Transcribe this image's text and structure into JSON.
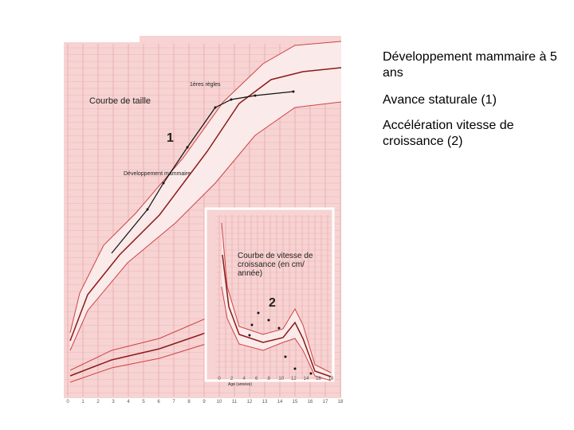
{
  "slide": {
    "bullets": [
      "Développement mammaire à 5 ans",
      "Avance staturale (1)",
      "Accélération vitesse de croissance (2)"
    ]
  },
  "figure": {
    "height_title": "Courbe de taille",
    "menarche_label": "1ères règles",
    "breast_label": "Développement mammaire",
    "marker_1": "1",
    "marker_2": "2",
    "x_ticks": [
      "0",
      "1",
      "2",
      "3",
      "4",
      "5",
      "6",
      "7",
      "8",
      "9",
      "10",
      "11",
      "12",
      "13",
      "14",
      "15",
      "16",
      "17",
      "18"
    ],
    "inset": {
      "title": "Courbe de vitesse de croissance (en cm/ année)",
      "x_label": "Age (années)",
      "x_ticks": [
        "0",
        "2",
        "4",
        "6",
        "8",
        "10",
        "12",
        "14",
        "16",
        "18"
      ]
    }
  }
}
